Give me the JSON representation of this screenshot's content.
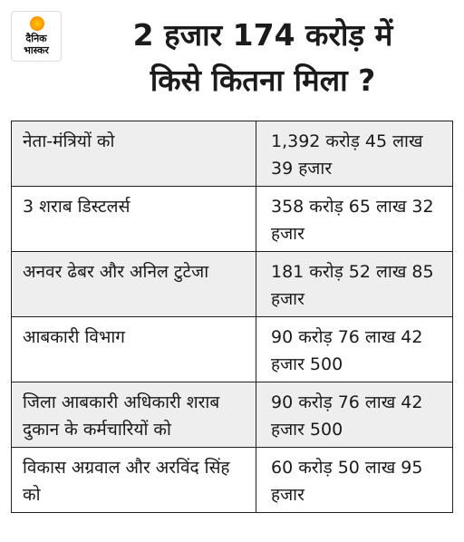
{
  "logo": {
    "line1": "दैनिक",
    "line2": "भास्कर"
  },
  "title": {
    "line1": "2 हजार 174 करोड़ में",
    "line2": "किसे कितना मिला ?"
  },
  "rows": [
    {
      "name": "नेता-मंत्रियों को",
      "amount": "1,392 करोड़ 45 लाख 39 हजार"
    },
    {
      "name": "3 शराब डिस्टलर्स",
      "amount": "358 करोड़ 65 लाख 32 हजार"
    },
    {
      "name": "अनवर ढेबर और अनिल टुटेजा",
      "amount": "181 करोड़ 52 लाख 85 हजार"
    },
    {
      "name": "आबकारी विभाग",
      "amount": "90 करोड़ 76 लाख 42 हजार 500"
    },
    {
      "name": "जिला आबकारी अधिकारी शराब दुकान के कर्मचारियों को",
      "amount": "90 करोड़ 76 लाख 42 हजार 500"
    },
    {
      "name": "विकास अग्रवाल और अरविंद सिंह को",
      "amount": "60 करोड़ 50 लाख 95 हजार"
    }
  ]
}
